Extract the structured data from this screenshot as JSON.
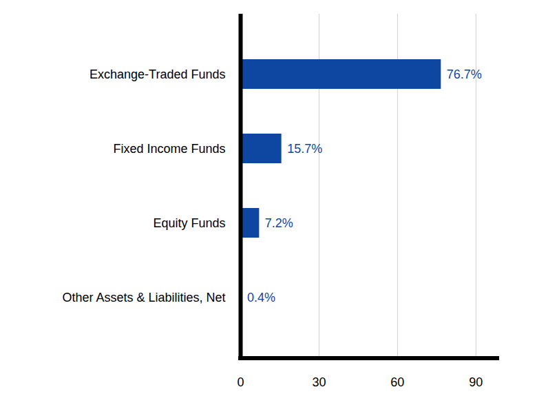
{
  "chart_data": {
    "type": "bar",
    "orientation": "horizontal",
    "categories": [
      "Exchange-Traded Funds",
      "Fixed Income Funds",
      "Equity Funds",
      "Other Assets & Liabilities, Net"
    ],
    "values": [
      76.7,
      15.7,
      7.2,
      0.4
    ],
    "value_labels": [
      "76.7%",
      "15.7%",
      "7.2%",
      "0.4%"
    ],
    "color": "#0d47a1",
    "xlim": [
      0,
      99
    ],
    "xticks": [
      0,
      30,
      60,
      90
    ],
    "grid": true,
    "data_labels": true
  }
}
